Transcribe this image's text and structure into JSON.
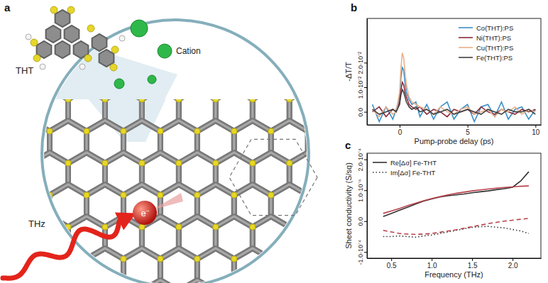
{
  "panel_labels": [
    "a",
    "b",
    "c"
  ],
  "diagram": {
    "molecule_label": "THT",
    "cation_label": "Cation",
    "electron_label": "e⁻",
    "wave_label": "THz"
  },
  "chart_data": [
    {
      "type": "line",
      "x_label": "Pump-probe delay (ps)",
      "y_label": "-ΔT/T",
      "xlim": [
        -2.4,
        10.4
      ],
      "ylim": [
        -0.0053,
        0.038
      ],
      "xticks": [
        0,
        5,
        10
      ],
      "yticks": [
        {
          "value": 0,
          "label": "0.0"
        },
        {
          "value": 0.01,
          "label": "1.0·10⁻²"
        },
        {
          "value": 0.02,
          "label": "2.0·10⁻²"
        }
      ],
      "legend": "upper right",
      "x": [
        -2,
        -1.5,
        -1,
        -0.5,
        -0.25,
        0,
        0.1,
        0.2,
        0.3,
        0.4,
        0.5,
        0.7,
        0.9,
        1.2,
        1.5,
        2,
        2.5,
        3,
        3.5,
        4,
        4.5,
        5,
        5.5,
        6,
        6.5,
        7,
        7.5,
        8,
        8.5,
        9,
        9.5,
        10
      ],
      "series": [
        {
          "name": "Co(THT):PS",
          "color": "#3a8fc7",
          "line_style": "solid",
          "values": [
            0.003,
            -0.004,
            0.002,
            -0.003,
            0.001,
            0.006,
            0.014,
            0.018,
            0.017,
            0.012,
            0.008,
            0.005,
            0.003,
            0.004,
            -0.002,
            0.003,
            -0.003,
            0.002,
            0.004,
            -0.003,
            0.001,
            0.003,
            -0.004,
            0.002,
            0.003,
            -0.002,
            0.004,
            -0.003,
            0.001,
            0.002,
            -0.003,
            0.001
          ]
        },
        {
          "name": "Ni(THT):PS",
          "color": "#8b2a3a",
          "line_style": "solid",
          "values": [
            0.0,
            0.002,
            -0.002,
            0.001,
            0.0,
            0.004,
            0.009,
            0.012,
            0.011,
            0.008,
            0.006,
            0.003,
            0.002,
            0.001,
            0.002,
            -0.001,
            0.001,
            0.0,
            -0.002,
            0.001,
            0.0,
            0.001,
            -0.001,
            0.002,
            0.0,
            -0.001,
            0.001,
            0.0,
            -0.001,
            0.001,
            0.0,
            0.001
          ]
        },
        {
          "name": "Cu(THT):PS",
          "color": "#e8b08a",
          "line_style": "solid",
          "values": [
            0.001,
            -0.002,
            0.002,
            -0.001,
            0.0,
            0.008,
            0.018,
            0.024,
            0.022,
            0.016,
            0.011,
            0.006,
            0.004,
            0.003,
            0.002,
            0.001,
            -0.001,
            0.002,
            0.0,
            -0.001,
            0.001,
            0.002,
            -0.001,
            0.0,
            0.001,
            -0.002,
            0.001,
            0.0,
            0.002,
            -0.001,
            0.001,
            0.0
          ]
        },
        {
          "name": "Fe(THT):PS",
          "color": "#404040",
          "line_style": "solid",
          "values": [
            0.001,
            -0.001,
            0.0,
            0.001,
            0.0,
            0.003,
            0.007,
            0.009,
            0.008,
            0.006,
            0.004,
            0.002,
            0.001,
            0.002,
            0.0,
            0.001,
            -0.001,
            0.0,
            0.001,
            -0.001,
            0.0,
            0.001,
            0.0,
            -0.001,
            0.001,
            0.0,
            -0.001,
            0.001,
            0.0,
            0.0,
            0.001,
            -0.001
          ]
        }
      ]
    },
    {
      "type": "line",
      "x_label": "Frequency (THz)",
      "y_label": "Sheet conductivity (S/sq)",
      "xlim": [
        0.2,
        2.35
      ],
      "ylim": [
        -0.00012,
        0.00022
      ],
      "xticks": [
        0.5,
        {
          "value": 1,
          "label": "1.0"
        },
        1.5,
        {
          "value": 2,
          "label": "2.0"
        }
      ],
      "yticks": [
        {
          "value": -0.0001,
          "label": "-1.0·10⁻⁴"
        },
        {
          "value": 0,
          "label": "0.0"
        },
        {
          "value": 0.0001,
          "label": "1.0·10⁻⁴"
        },
        {
          "value": 0.0002,
          "label": "2.0·10⁻⁴"
        }
      ],
      "legend": "upper left",
      "x": [
        0.4,
        0.5,
        0.6,
        0.7,
        0.8,
        0.9,
        1.0,
        1.1,
        1.2,
        1.3,
        1.4,
        1.5,
        1.6,
        1.7,
        1.8,
        1.9,
        2.0,
        2.1,
        2.2
      ],
      "series": [
        {
          "name": "Re[Δσ] Fe-THT",
          "color": "#333333",
          "line_style": "solid",
          "values": [
            1.5e-05,
            2.5e-05,
            3.5e-05,
            4.5e-05,
            5.5e-05,
            6.5e-05,
            7.2e-05,
            7.8e-05,
            8.2e-05,
            8.5e-05,
            8.8e-05,
            9.2e-05,
            9.5e-05,
            9.8e-05,
            0.000102,
            0.000105,
            0.00011,
            0.00013,
            0.00016
          ]
        },
        {
          "name": "Im[Δσ] Fe-THT",
          "color": "#333333",
          "line_style": "dotted",
          "values": [
            -5e-05,
            -5e-05,
            -4.8e-05,
            -5e-05,
            -5.2e-05,
            -4.8e-05,
            -4.5e-05,
            -4e-05,
            -3.5e-05,
            -3e-05,
            -2.5e-05,
            -2e-05,
            -1.8e-05,
            -1.7e-05,
            -2e-05,
            -2.2e-05,
            -2.7e-05,
            -3.2e-05,
            -4e-05
          ]
        },
        {
          "color": "#b8404a",
          "line_style": "solid",
          "values": [
            2.5e-05,
            3.3e-05,
            4.1e-05,
            5e-05,
            5.8e-05,
            6.6e-05,
            7.3e-05,
            7.9e-05,
            8.5e-05,
            9e-05,
            9.4e-05,
            9.8e-05,
            0.000101,
            0.000104,
            0.000107,
            0.000109,
            0.000111,
            0.000113,
            0.000114
          ]
        },
        {
          "color": "#b8404a",
          "line_style": "dashed",
          "values": [
            -3e-05,
            -3.5e-05,
            -4e-05,
            -4.2e-05,
            -4.3e-05,
            -4.2e-05,
            -4e-05,
            -3.6e-05,
            -3.2e-05,
            -2.8e-05,
            -2.3e-05,
            -1.8e-05,
            -1.3e-05,
            -8e-06,
            -4e-06,
            0,
            3e-06,
            6e-06,
            9e-06
          ]
        }
      ]
    }
  ]
}
